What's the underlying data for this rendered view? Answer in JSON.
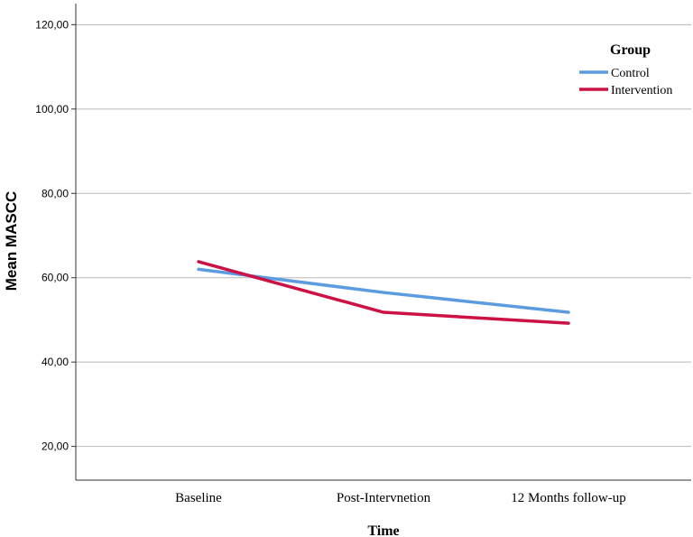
{
  "chart_data": {
    "type": "line",
    "categories": [
      "Baseline",
      "Post-Intervnetion",
      "12 Months follow-up"
    ],
    "series": [
      {
        "name": "Control",
        "values": [
          62.0,
          56.5,
          51.8
        ],
        "color": "#5b9be0"
      },
      {
        "name": "Intervention",
        "values": [
          63.8,
          51.8,
          49.2
        ],
        "color": "#cc1144"
      }
    ],
    "xlabel": "Time",
    "ylabel": "Mean MASCC",
    "ylim": [
      12.0,
      125.0
    ],
    "yticks": [
      20,
      40,
      60,
      80,
      100,
      120
    ],
    "ytick_labels": [
      "20,00",
      "40,00",
      "60,00",
      "80,00",
      "100,00",
      "120,00"
    ],
    "legend": {
      "title": "Group",
      "position": "top-right"
    },
    "grid": "horizontal"
  }
}
